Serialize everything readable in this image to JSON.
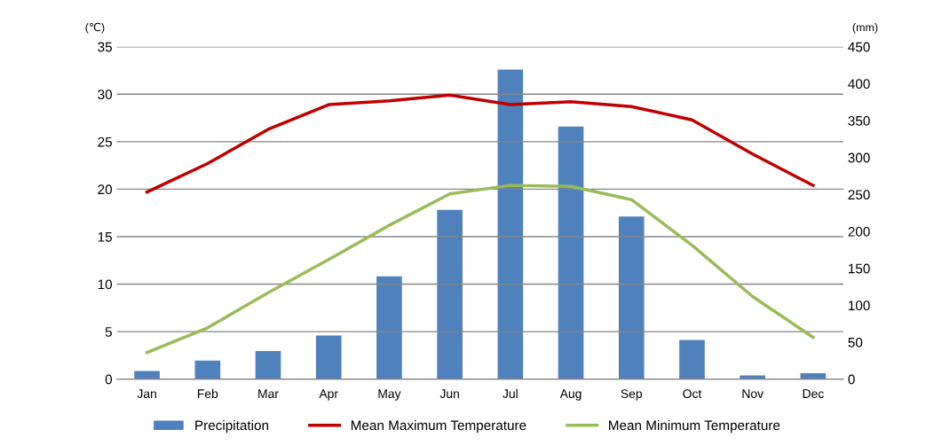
{
  "chart_data": {
    "type": "bar",
    "ylabel": "(℃)",
    "y2label": "(mm)",
    "categories": [
      "Jan",
      "Feb",
      "Mar",
      "Apr",
      "May",
      "Jun",
      "Jul",
      "Aug",
      "Sep",
      "Oct",
      "Nov",
      "Dec"
    ],
    "series": [
      {
        "name": "Precipitation",
        "axis": "y2",
        "color": "#4f81bd",
        "values": [
          11,
          25,
          38,
          59,
          139,
          229,
          419,
          342,
          220,
          53,
          5,
          8
        ]
      },
      {
        "name": "Mean Maximum Temperature",
        "type": "line",
        "color": "#c00000",
        "values": [
          19.7,
          22.7,
          26.3,
          28.9,
          29.3,
          29.9,
          28.9,
          29.2,
          28.7,
          27.3,
          23.7,
          20.4
        ]
      },
      {
        "name": "Mean Minimum Temperature",
        "type": "line",
        "color": "#9bbb59",
        "values": [
          2.8,
          5.4,
          9.1,
          12.6,
          16.2,
          19.5,
          20.4,
          20.3,
          18.9,
          14.1,
          8.7,
          4.4
        ]
      }
    ],
    "ylim": [
      0,
      35
    ],
    "yticks": [
      0,
      5,
      10,
      15,
      20,
      25,
      30,
      35
    ],
    "y2lim": [
      0,
      450
    ],
    "y2ticks": [
      0,
      50,
      100,
      150,
      200,
      250,
      300,
      350,
      400,
      450
    ],
    "grid": "y",
    "legend": "bottom",
    "marker": "none",
    "line_style": "solid"
  }
}
